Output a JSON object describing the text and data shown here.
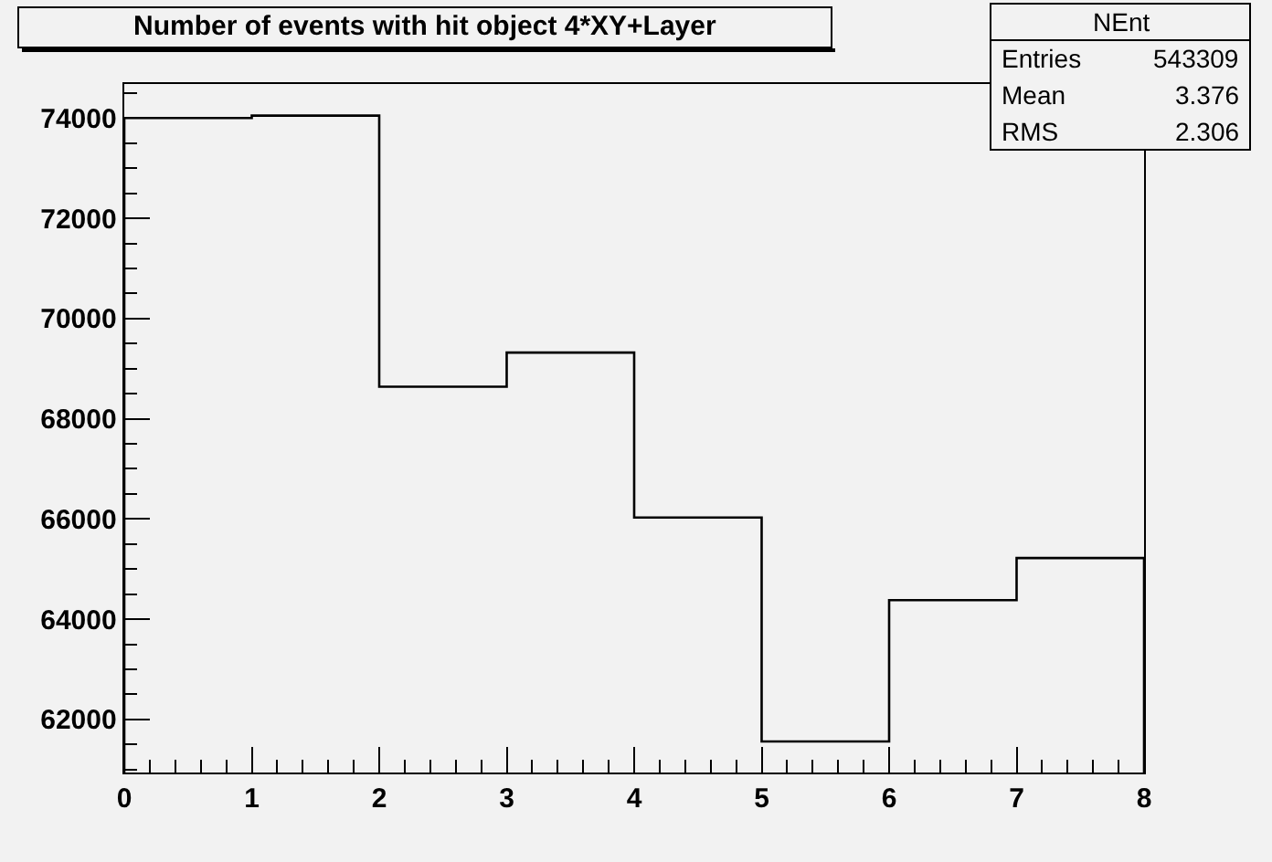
{
  "chart_data": {
    "type": "histogram",
    "title": "Number of events with hit object 4*XY+Layer",
    "bins": [
      0,
      1,
      2,
      3,
      4,
      5,
      6,
      7,
      8
    ],
    "values": [
      74000,
      74050,
      68640,
      69320,
      66030,
      61560,
      64380,
      65220
    ],
    "color": "#000000",
    "xlim": [
      0,
      8
    ],
    "xticks": [
      0,
      1,
      2,
      3,
      4,
      5,
      6,
      7,
      8
    ],
    "ylim": [
      60940,
      74680
    ],
    "yticks": [
      62000,
      64000,
      66000,
      68000,
      70000,
      72000,
      74000
    ],
    "grid": false,
    "annotations": [
      "NEnt",
      "Entries",
      "543309",
      "Mean",
      "3.376",
      "RMS",
      "2.306"
    ]
  }
}
